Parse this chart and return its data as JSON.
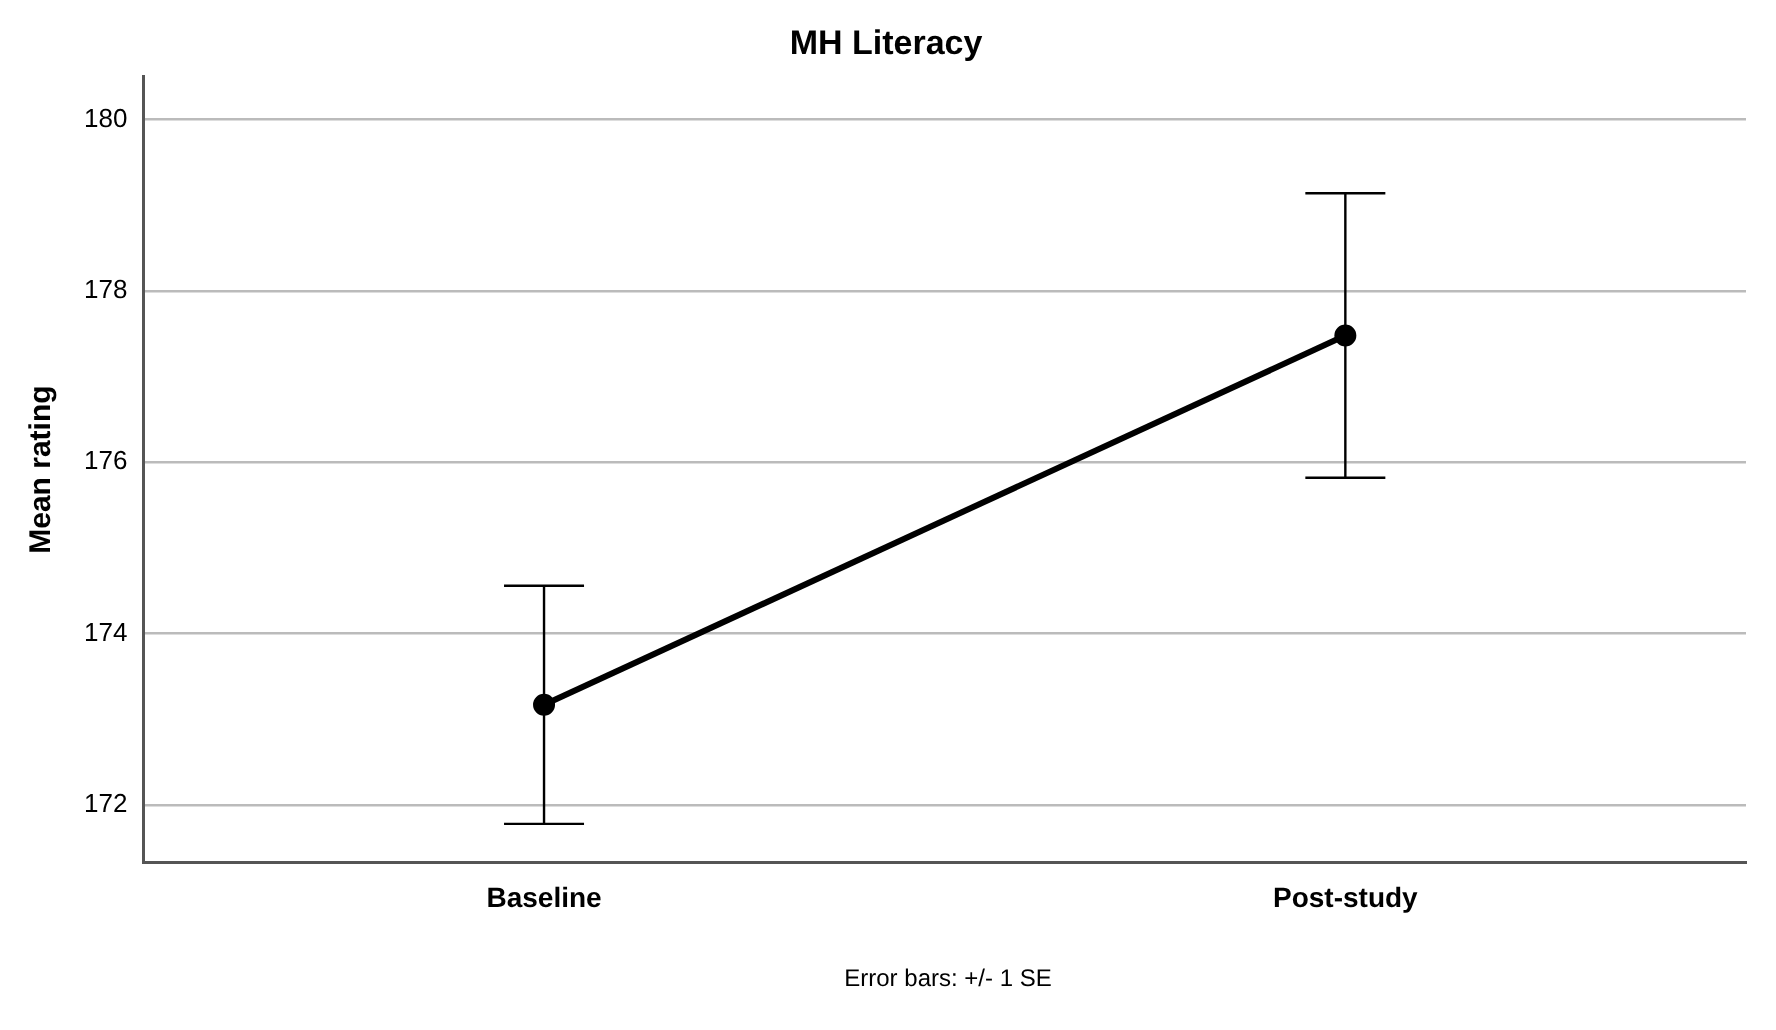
{
  "chart_data": {
    "type": "line",
    "title": "MH Literacy",
    "ylabel": "Mean rating",
    "categories": [
      "Baseline",
      "Post-study"
    ],
    "series": [
      {
        "color": "#000000",
        "values": [
          173.17,
          177.48
        ],
        "errors": [
          1.39,
          1.66
        ]
      }
    ],
    "ylim": [
      171.33,
      180.5
    ],
    "yticks": [
      172,
      174,
      176,
      178,
      180
    ],
    "grid": "y",
    "legend": false,
    "marker": "circle",
    "line_style": "solid",
    "annotations": [
      "Error bars: +/- 1 SE"
    ]
  }
}
